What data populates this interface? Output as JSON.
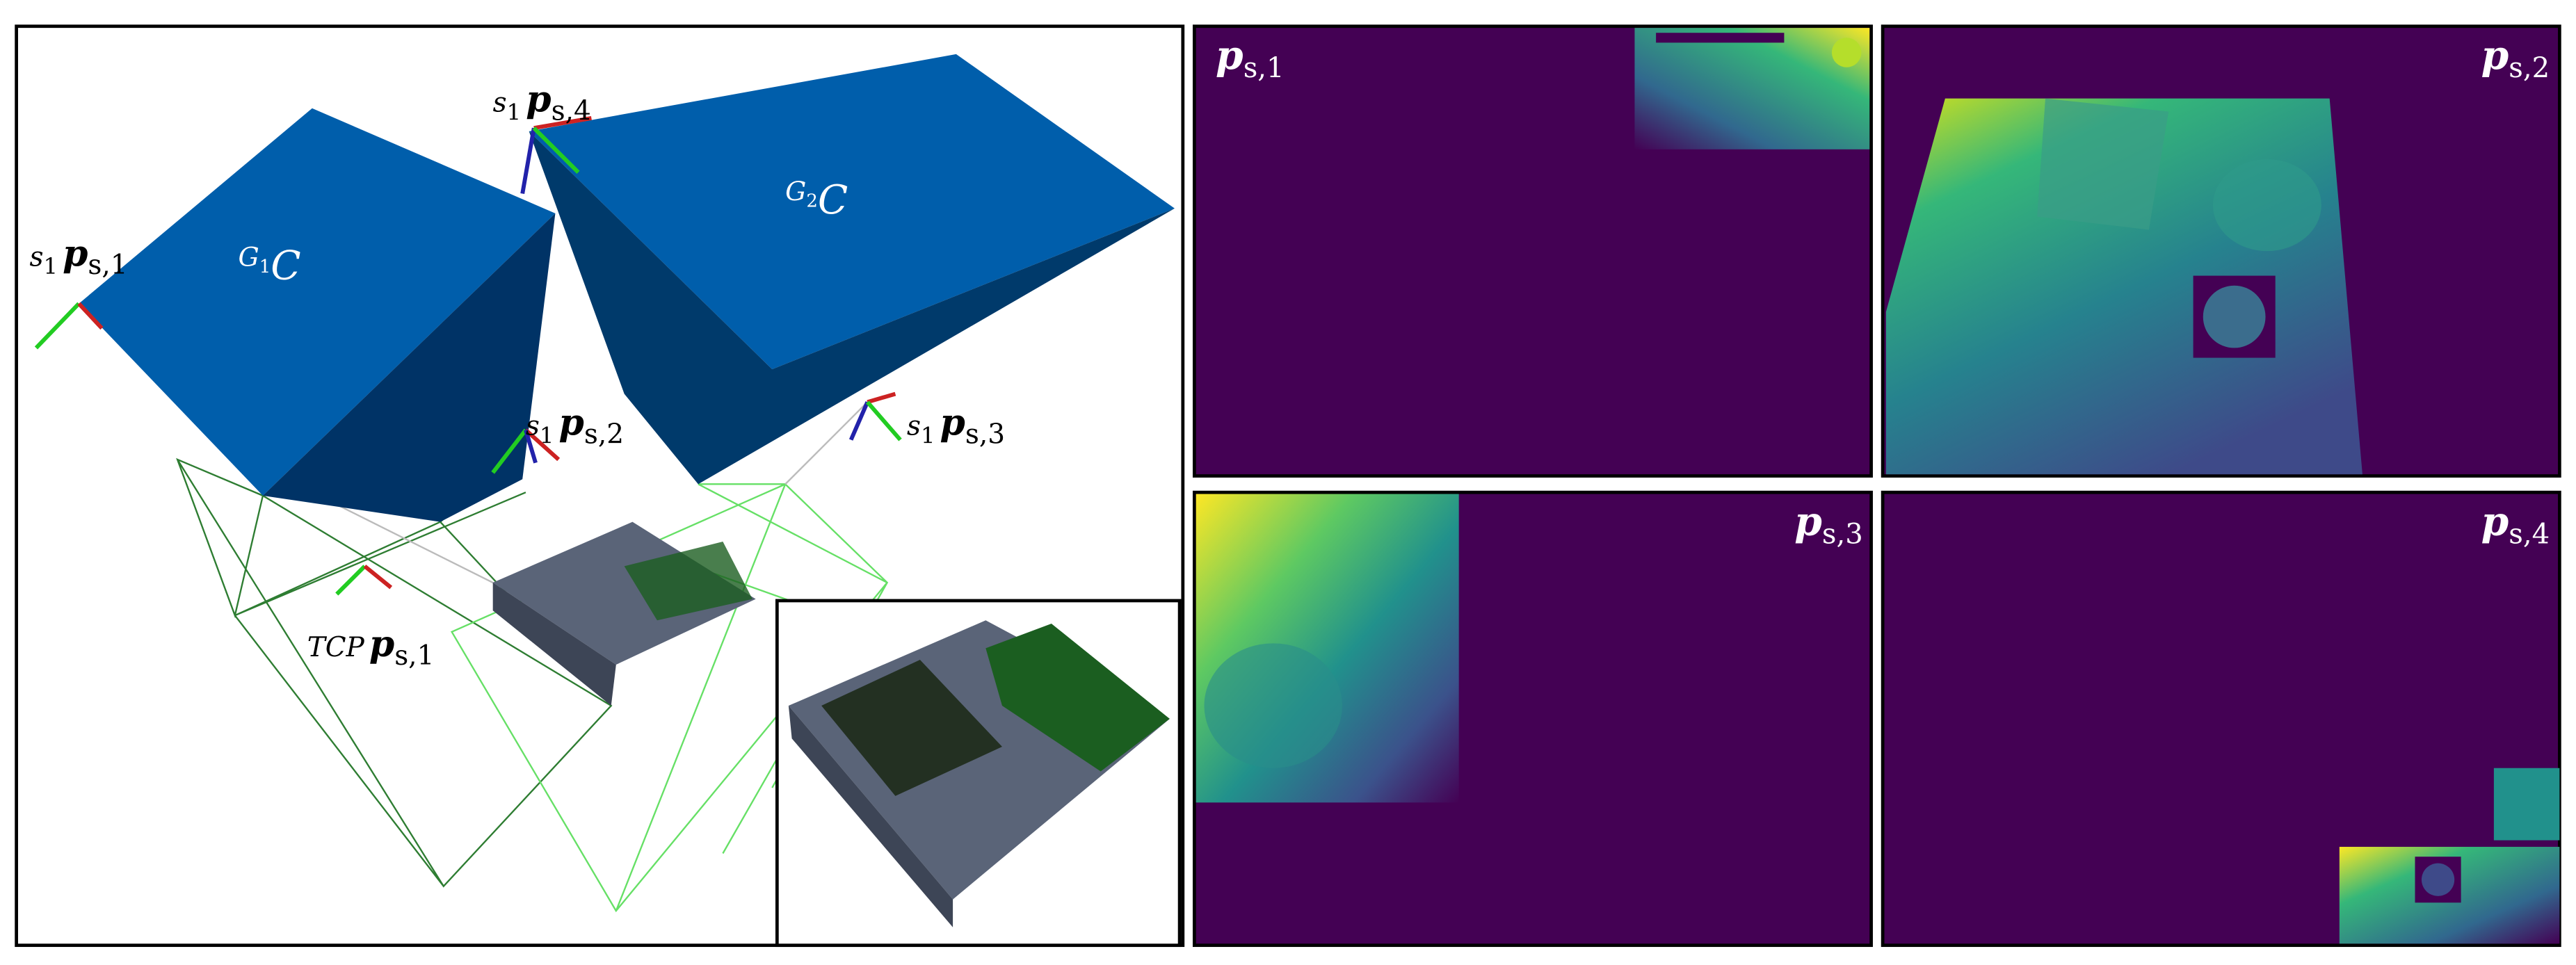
{
  "left_panel": {
    "sensor_labels": [
      {
        "frame": "s",
        "frame_index": "1",
        "symbol": "p",
        "index": "s,1"
      },
      {
        "frame": "s",
        "frame_index": "1",
        "symbol": "p",
        "index": "s,4"
      },
      {
        "frame": "s",
        "frame_index": "1",
        "symbol": "p",
        "index": "s,2"
      },
      {
        "frame": "s",
        "frame_index": "1",
        "symbol": "p",
        "index": "s,3"
      },
      {
        "frame": "TCP",
        "symbol": "p",
        "index": "s,1"
      }
    ],
    "cluster_labels": [
      {
        "group": "G",
        "group_index": "1",
        "symbol": "C"
      },
      {
        "group": "G",
        "group_index": "2",
        "symbol": "C"
      }
    ]
  },
  "depth_images": [
    {
      "symbol": "p",
      "index": "s,1"
    },
    {
      "symbol": "p",
      "index": "s,2"
    },
    {
      "symbol": "p",
      "index": "s,3"
    },
    {
      "symbol": "p",
      "index": "s,4"
    }
  ]
}
